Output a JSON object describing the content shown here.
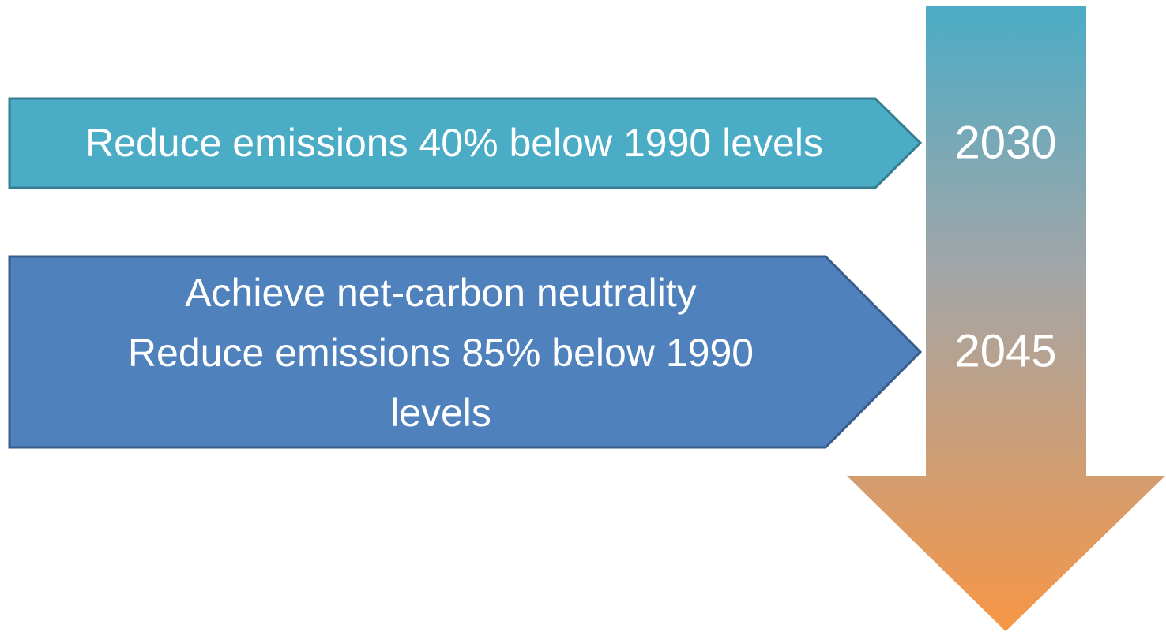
{
  "milestones": [
    {
      "lines": [
        "Reduce emissions 40% below 1990 levels"
      ],
      "year": "2030"
    },
    {
      "lines": [
        "Achieve net-carbon neutrality",
        "Reduce emissions 85% below 1990",
        "levels"
      ],
      "year": "2045"
    }
  ]
}
